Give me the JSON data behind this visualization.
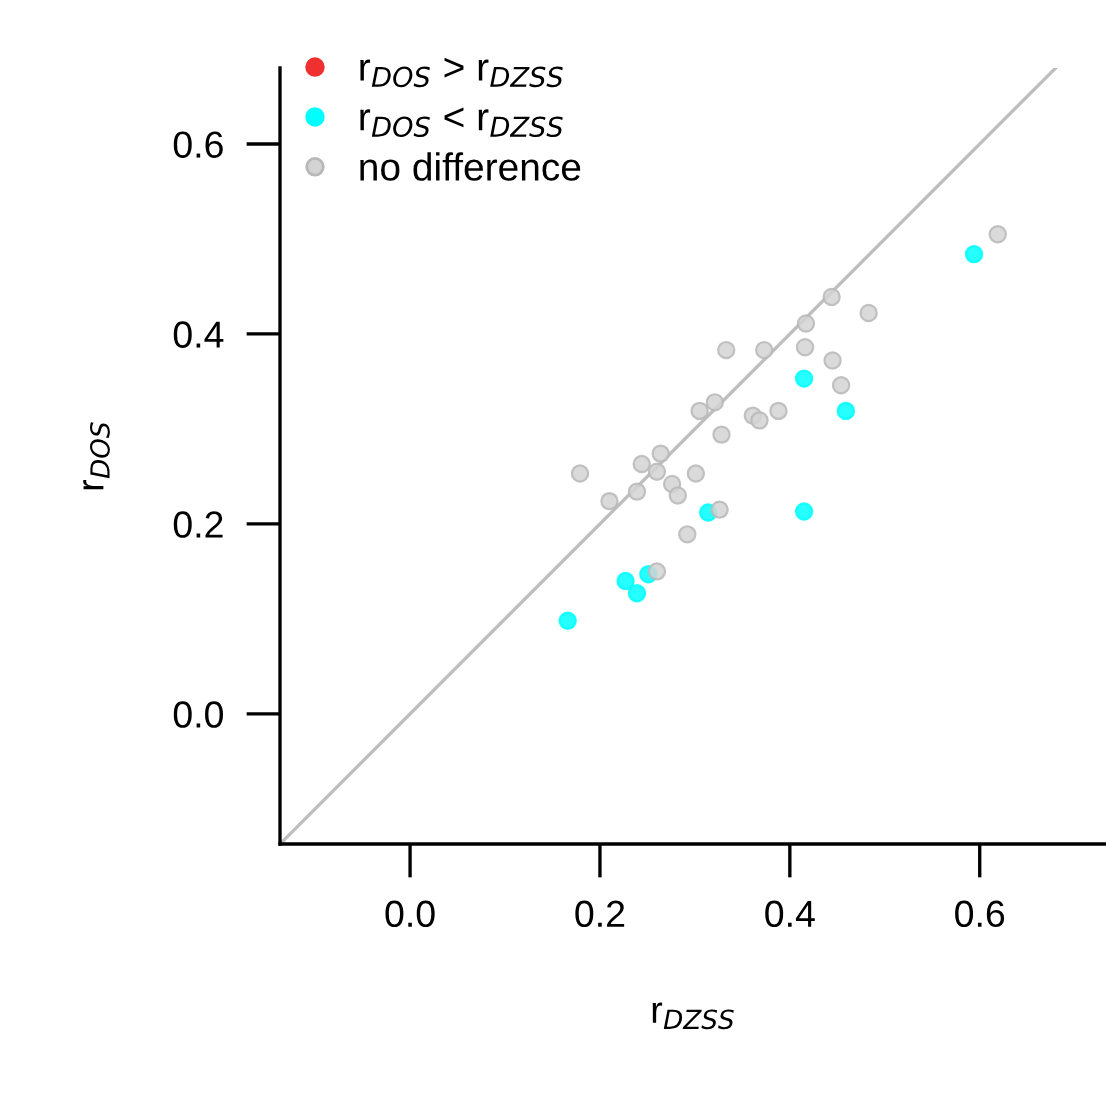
{
  "chart_data": {
    "type": "scatter",
    "xlabel": "r$_{DZSS}$",
    "ylabel": "r$_{DOS}$",
    "xlim": [
      -0.137,
      0.733
    ],
    "ylim": [
      -0.137,
      0.68
    ],
    "xticks": [
      {
        "value": 0,
        "label": "0.0"
      },
      0.2,
      0.4,
      0.6
    ],
    "yticks": [
      {
        "value": 0,
        "label": "0.0"
      },
      0.2,
      0.4,
      0.6
    ],
    "grid": false,
    "legend": "top left",
    "marker": "circle",
    "series": [
      {
        "name": "r$_{DOS}$ > r$_{DZSS}$",
        "color": "#f03030"
      },
      {
        "name": "r$_{DOS}$ < r$_{DZSS}$",
        "color": "#00ffff",
        "x": [
          0.415,
          0.459,
          0.314,
          0.415,
          0.227,
          0.251,
          0.239,
          0.166,
          0.594
        ],
        "values": [
          0.353,
          0.319,
          0.212,
          0.213,
          0.14,
          0.147,
          0.127,
          0.098,
          0.484
        ]
      },
      {
        "name": "no difference",
        "color": "#d3d3d3",
        "x": [
          0.444,
          0.483,
          0.417,
          0.333,
          0.373,
          0.416,
          0.445,
          0.454,
          0.305,
          0.321,
          0.361,
          0.368,
          0.388,
          0.328,
          0.179,
          0.244,
          0.264,
          0.26,
          0.21,
          0.239,
          0.276,
          0.282,
          0.301,
          0.326,
          0.292,
          0.26,
          0.619
        ],
        "values": [
          0.439,
          0.422,
          0.411,
          0.383,
          0.383,
          0.386,
          0.372,
          0.346,
          0.319,
          0.328,
          0.314,
          0.309,
          0.319,
          0.294,
          0.253,
          0.263,
          0.274,
          0.255,
          0.224,
          0.234,
          0.242,
          0.23,
          0.253,
          0.215,
          0.189,
          0.15,
          0.505
        ]
      },
      {
        "type": "line",
        "marker": "none",
        "color": "#bebebe",
        "x": [
          -0.137,
          0.68
        ],
        "values": [
          -0.137,
          0.68
        ]
      }
    ]
  }
}
